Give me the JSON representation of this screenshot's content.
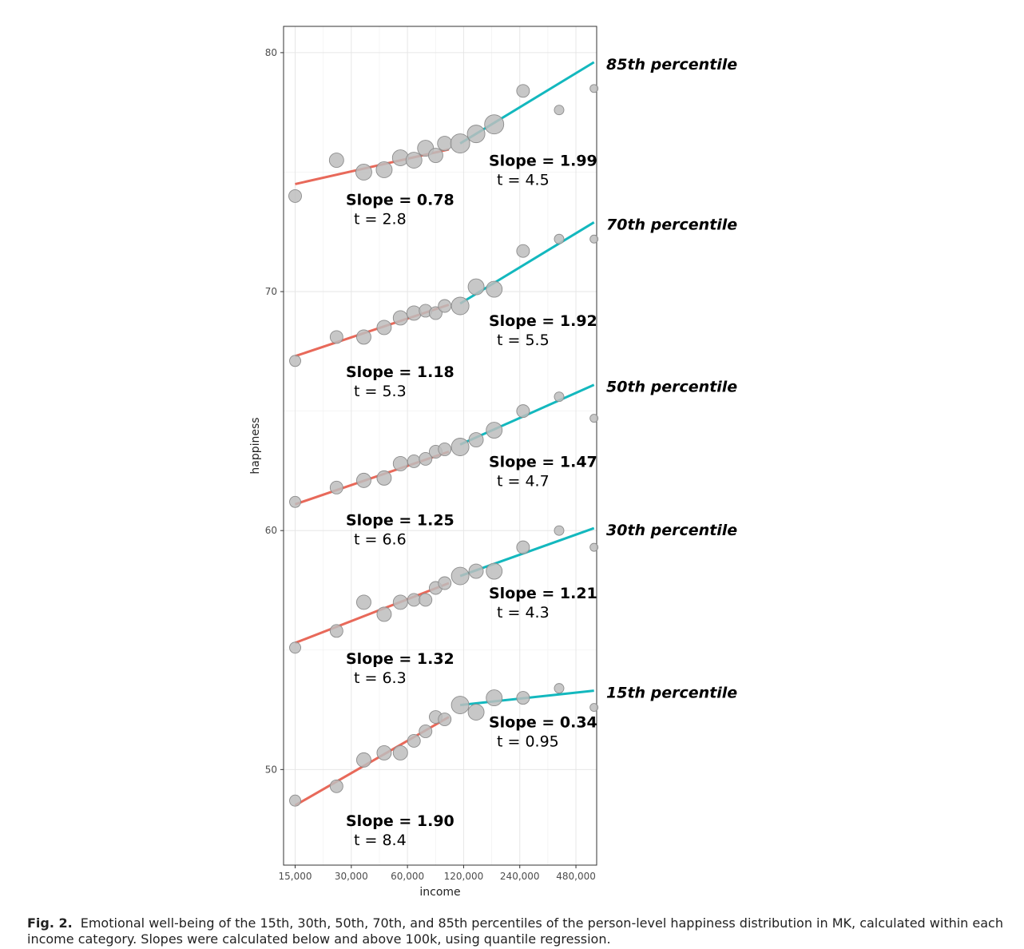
{
  "chart_data": {
    "type": "scatter",
    "xlabel": "income",
    "ylabel": "happiness",
    "x_scale": "log2",
    "xlim": [
      13000,
      620000
    ],
    "ylim": [
      46,
      81.1
    ],
    "x_ticks": [
      15000,
      30000,
      60000,
      120000,
      240000,
      480000
    ],
    "x_tick_labels": [
      "15,000",
      "30,000",
      "60,000",
      "120,000",
      "240,000",
      "480,000"
    ],
    "y_ticks": [
      50,
      60,
      70,
      80
    ],
    "y_tick_labels": [
      "50",
      "60",
      "70",
      "80"
    ],
    "grid": true,
    "low_line_color": "#E8695A",
    "high_line_color": "#13B8BE",
    "point_color": "#BDBDBD",
    "series": [
      {
        "name": "85th percentile",
        "points": [
          [
            15000,
            74.0,
            8
          ],
          [
            25000,
            75.5,
            9
          ],
          [
            35000,
            75.0,
            10
          ],
          [
            45000,
            75.1,
            10
          ],
          [
            55000,
            75.6,
            10
          ],
          [
            65000,
            75.5,
            10
          ],
          [
            75000,
            76.0,
            10
          ],
          [
            85000,
            75.7,
            9
          ],
          [
            95000,
            76.2,
            9
          ],
          [
            115000,
            76.2,
            12
          ],
          [
            140000,
            76.6,
            11
          ],
          [
            175000,
            77.0,
            12
          ],
          [
            250000,
            78.4,
            8
          ],
          [
            390000,
            77.6,
            6
          ],
          [
            600000,
            78.5,
            5
          ]
        ],
        "low_line": {
          "x": [
            15000,
            100000
          ],
          "y": [
            74.5,
            75.95
          ]
        },
        "high_line": {
          "x": [
            115000,
            600000
          ],
          "y": [
            76.2,
            79.6
          ]
        },
        "low_slope_label": "Slope = 0.78",
        "low_t_label": "t = 2.8",
        "high_slope_label": "Slope = 1.99",
        "high_t_label": "t = 4.5"
      },
      {
        "name": "70th percentile",
        "points": [
          [
            15000,
            67.1,
            7
          ],
          [
            25000,
            68.1,
            8
          ],
          [
            35000,
            68.1,
            9
          ],
          [
            45000,
            68.5,
            9
          ],
          [
            55000,
            68.9,
            9
          ],
          [
            65000,
            69.1,
            9
          ],
          [
            75000,
            69.2,
            8
          ],
          [
            85000,
            69.1,
            8
          ],
          [
            95000,
            69.4,
            8
          ],
          [
            115000,
            69.4,
            11
          ],
          [
            140000,
            70.2,
            10
          ],
          [
            175000,
            70.1,
            10
          ],
          [
            250000,
            71.7,
            8
          ],
          [
            390000,
            72.2,
            6
          ],
          [
            600000,
            72.2,
            5
          ]
        ],
        "low_line": {
          "x": [
            15000,
            100000
          ],
          "y": [
            67.3,
            69.45
          ]
        },
        "high_line": {
          "x": [
            115000,
            600000
          ],
          "y": [
            69.5,
            72.9
          ]
        },
        "low_slope_label": "Slope = 1.18",
        "low_t_label": "t = 5.3",
        "high_slope_label": "Slope = 1.92",
        "high_t_label": "t = 5.5"
      },
      {
        "name": "50th percentile",
        "points": [
          [
            15000,
            61.2,
            7
          ],
          [
            25000,
            61.8,
            8
          ],
          [
            35000,
            62.1,
            9
          ],
          [
            45000,
            62.2,
            9
          ],
          [
            55000,
            62.8,
            9
          ],
          [
            65000,
            62.9,
            8
          ],
          [
            75000,
            63.0,
            8
          ],
          [
            85000,
            63.3,
            8
          ],
          [
            95000,
            63.4,
            8
          ],
          [
            115000,
            63.5,
            11
          ],
          [
            140000,
            63.8,
            9
          ],
          [
            175000,
            64.2,
            10
          ],
          [
            250000,
            65.0,
            8
          ],
          [
            390000,
            65.6,
            6
          ],
          [
            600000,
            64.7,
            5
          ]
        ],
        "low_line": {
          "x": [
            15000,
            100000
          ],
          "y": [
            61.1,
            63.3
          ]
        },
        "high_line": {
          "x": [
            115000,
            600000
          ],
          "y": [
            63.6,
            66.1
          ]
        },
        "low_slope_label": "Slope = 1.25",
        "low_t_label": "t = 6.6",
        "high_slope_label": "Slope = 1.47",
        "high_t_label": "t = 4.7"
      },
      {
        "name": "30th percentile",
        "points": [
          [
            15000,
            55.1,
            7
          ],
          [
            25000,
            55.8,
            8
          ],
          [
            35000,
            57.0,
            9
          ],
          [
            45000,
            56.5,
            9
          ],
          [
            55000,
            57.0,
            9
          ],
          [
            65000,
            57.1,
            8
          ],
          [
            75000,
            57.1,
            8
          ],
          [
            85000,
            57.6,
            8
          ],
          [
            95000,
            57.8,
            8
          ],
          [
            115000,
            58.1,
            11
          ],
          [
            140000,
            58.3,
            9
          ],
          [
            175000,
            58.3,
            10
          ],
          [
            250000,
            59.3,
            8
          ],
          [
            390000,
            60.0,
            6
          ],
          [
            600000,
            59.3,
            5
          ]
        ],
        "low_line": {
          "x": [
            15000,
            100000
          ],
          "y": [
            55.3,
            57.8
          ]
        },
        "high_line": {
          "x": [
            115000,
            600000
          ],
          "y": [
            58.1,
            60.1
          ]
        },
        "low_slope_label": "Slope = 1.32",
        "low_t_label": "t = 6.3",
        "high_slope_label": "Slope = 1.21",
        "high_t_label": "t = 4.3"
      },
      {
        "name": "15th percentile",
        "points": [
          [
            15000,
            48.7,
            7
          ],
          [
            25000,
            49.3,
            8
          ],
          [
            35000,
            50.4,
            9
          ],
          [
            45000,
            50.7,
            9
          ],
          [
            55000,
            50.7,
            9
          ],
          [
            65000,
            51.2,
            8
          ],
          [
            75000,
            51.6,
            8
          ],
          [
            85000,
            52.2,
            8
          ],
          [
            95000,
            52.1,
            8
          ],
          [
            115000,
            52.7,
            11
          ],
          [
            140000,
            52.4,
            10
          ],
          [
            175000,
            53.0,
            10
          ],
          [
            250000,
            53.0,
            8
          ],
          [
            390000,
            53.4,
            6
          ],
          [
            600000,
            52.6,
            5
          ]
        ],
        "low_line": {
          "x": [
            15000,
            100000
          ],
          "y": [
            48.5,
            52.2
          ]
        },
        "high_line": {
          "x": [
            115000,
            600000
          ],
          "y": [
            52.7,
            53.3
          ]
        },
        "low_slope_label": "Slope = 1.90",
        "low_t_label": "t = 8.4",
        "high_slope_label": "Slope = 0.34",
        "high_t_label": "t = 0.95"
      }
    ]
  },
  "caption": {
    "label": "Fig. 2.",
    "text": "Emotional well-being of the 15th, 30th, 50th, 70th, and 85th percentiles of the person-level happiness distribution in MK, calculated within each income category. Slopes were calculated below and above 100k, using quantile regression."
  }
}
